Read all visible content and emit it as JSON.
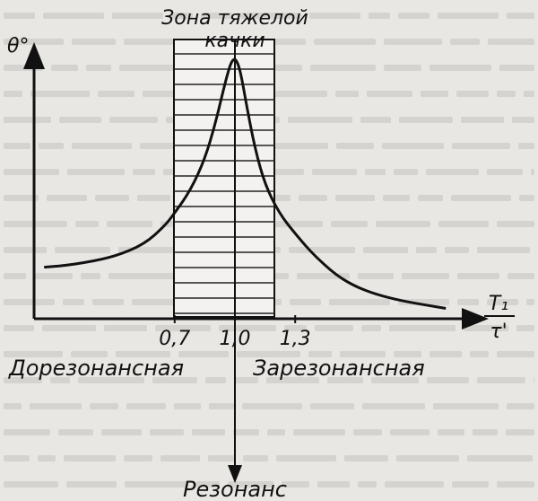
{
  "figure": {
    "zone_title_line1": "Зона тяжелой",
    "zone_title_line2": "качки",
    "y_axis_label": "θ°",
    "x_axis_label_num": "T₁",
    "x_axis_label_den": "τ'",
    "left_region": "Дорезонансная",
    "right_region": "Зарезонансная",
    "resonance_label": "Резонанс"
  },
  "chart_data": {
    "type": "line",
    "x_ticks": [
      "0,7",
      "1,0",
      "1,3"
    ],
    "x_tick_values": [
      0.7,
      1.0,
      1.3
    ],
    "shaded_zone": [
      0.7,
      1.3
    ],
    "resonance_x": 1.0,
    "series": [
      {
        "x": [
          0.05,
          0.2,
          0.4,
          0.55,
          0.65,
          0.7,
          0.78,
          0.85,
          0.9,
          0.94,
          0.97,
          0.985,
          1.0,
          1.015,
          1.03,
          1.06,
          1.1,
          1.15,
          1.22,
          1.3,
          1.4,
          1.55,
          1.75,
          2.05
        ],
        "y": [
          0.2,
          0.21,
          0.24,
          0.29,
          0.36,
          0.41,
          0.5,
          0.62,
          0.75,
          0.88,
          0.97,
          1.0,
          1.01,
          0.99,
          0.95,
          0.82,
          0.66,
          0.52,
          0.41,
          0.33,
          0.24,
          0.14,
          0.08,
          0.04
        ]
      }
    ]
  }
}
